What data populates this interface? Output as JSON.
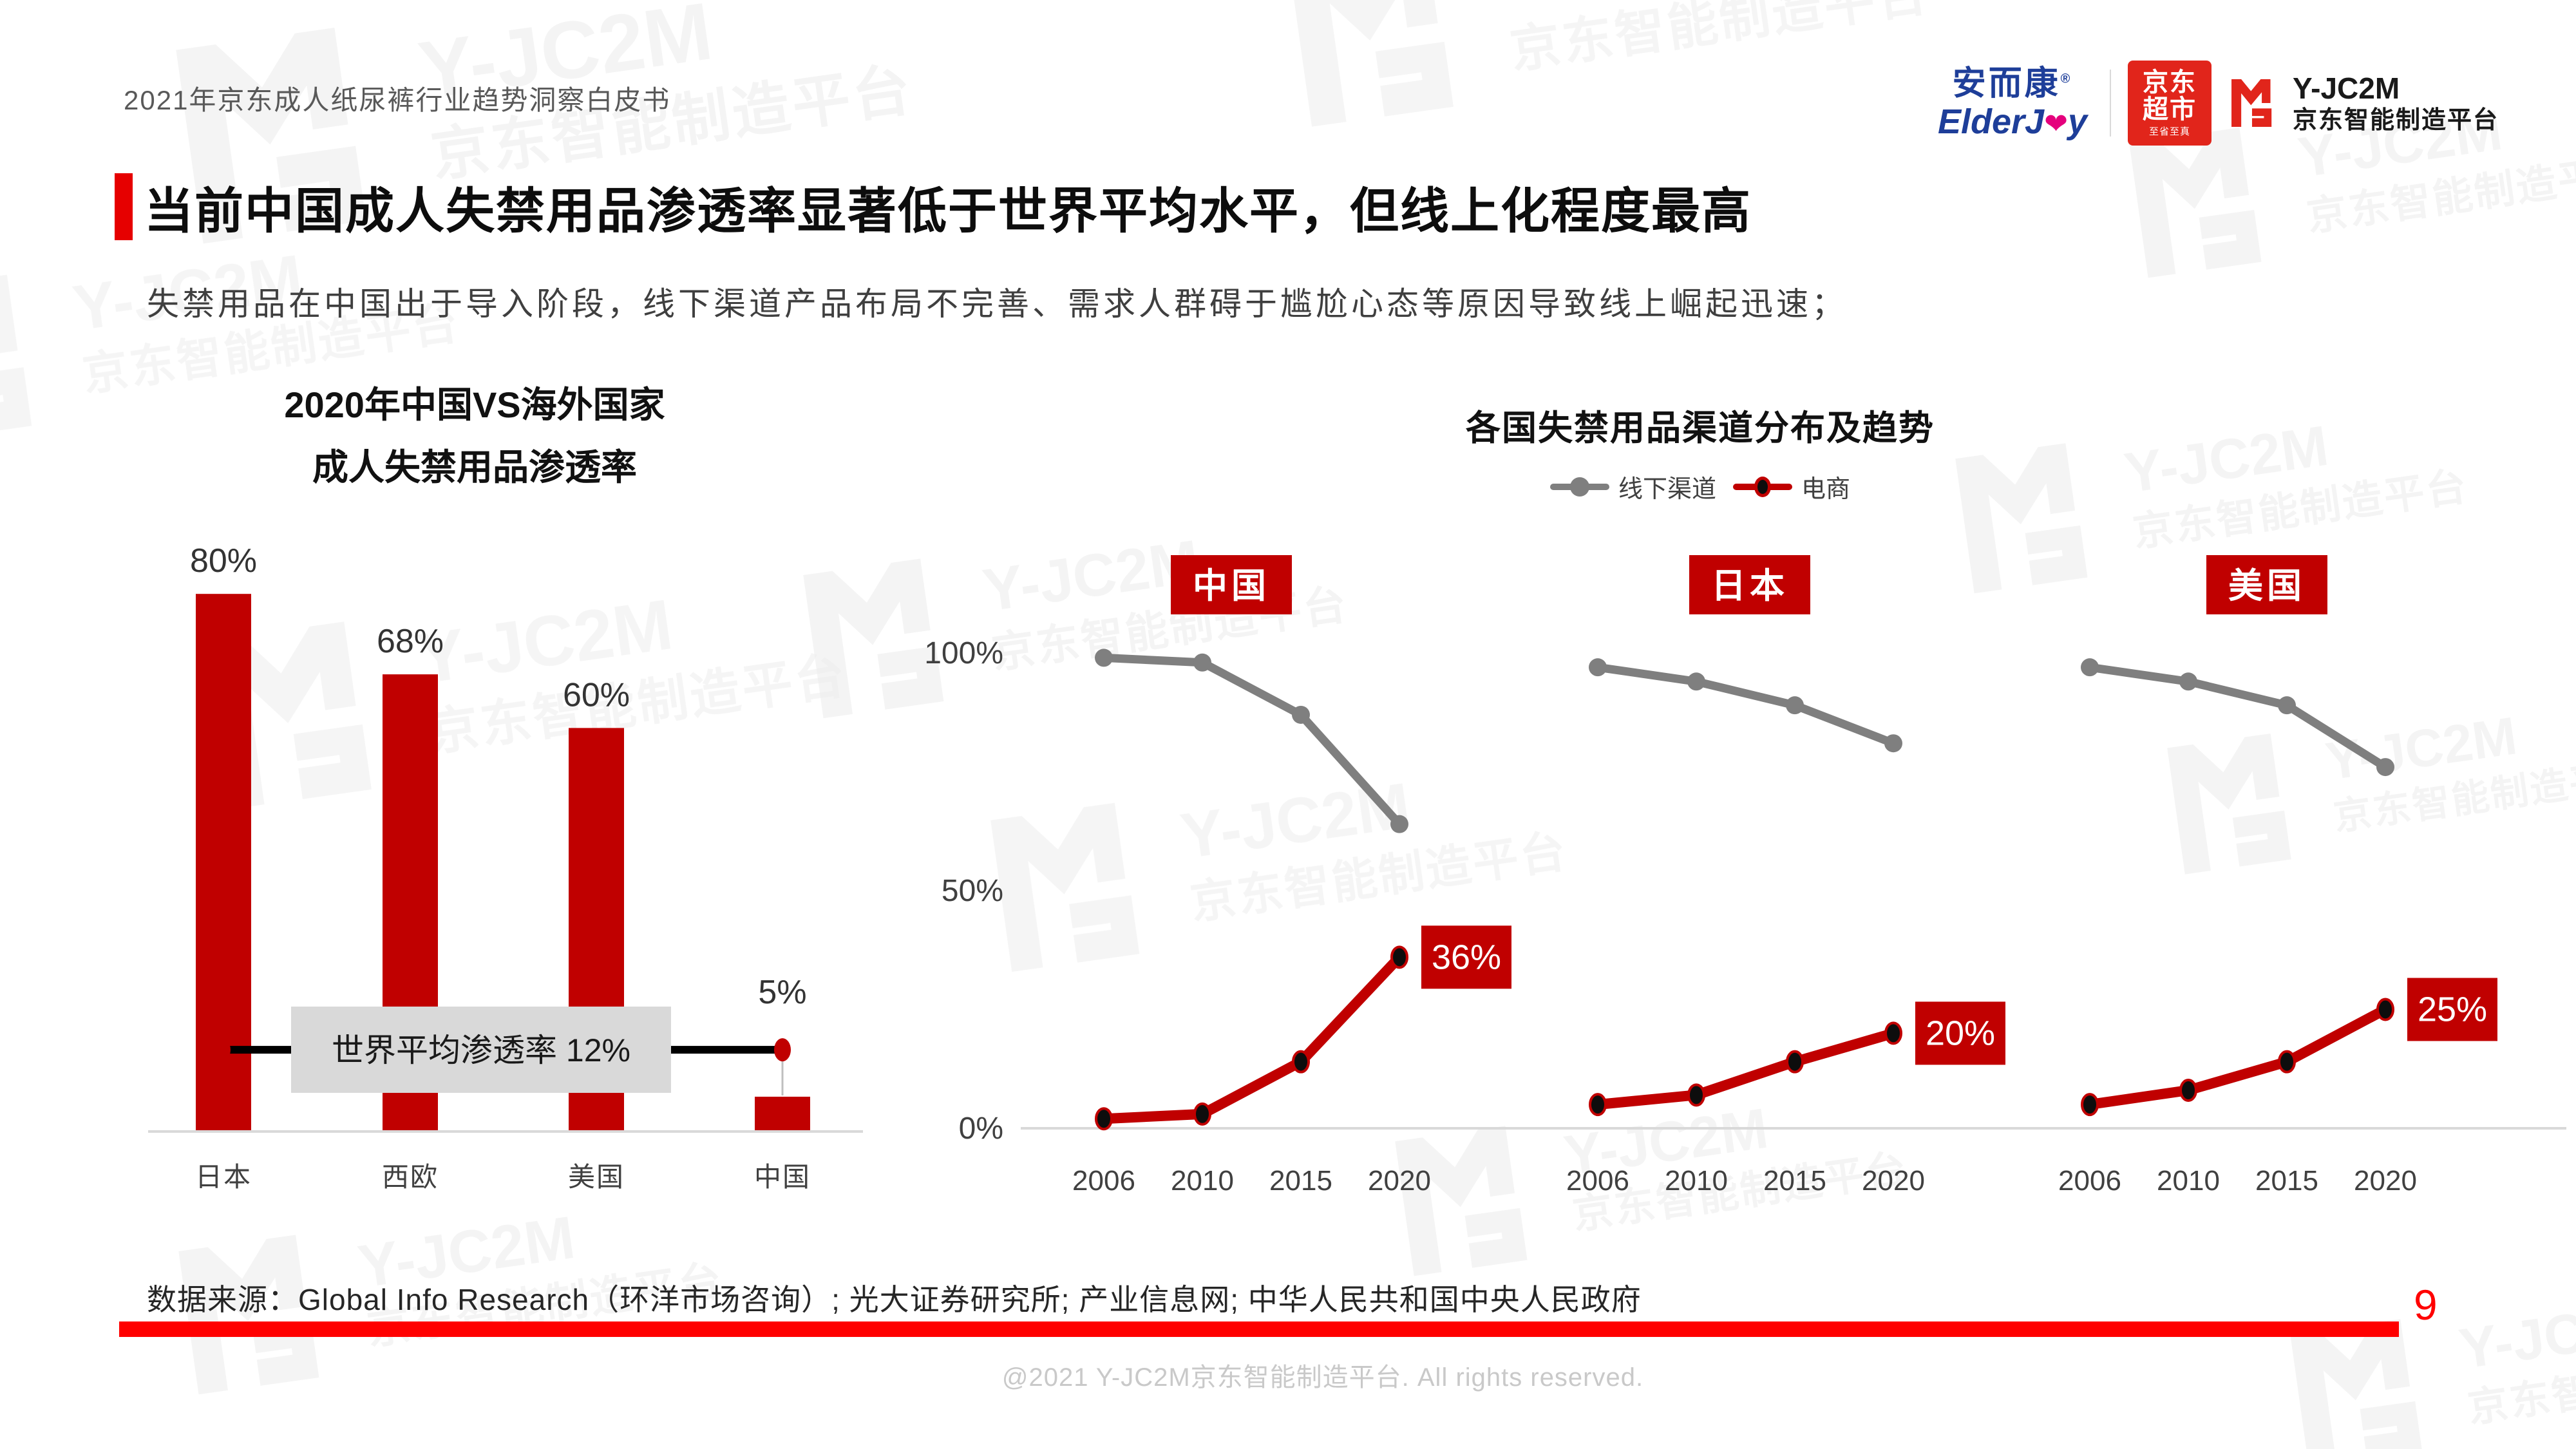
{
  "page": {
    "header_title": "2021年京东成人纸尿裤行业趋势洞察白皮书",
    "title": "当前中国成人失禁用品渗透率显著低于世界平均水平，但线上化程度最高",
    "subtitle": "失禁用品在中国出于导入阶段，线下渠道产品布局不完善、需求人群碍于尴尬心态等原因导致线上崛起迅速；",
    "source": "数据来源：Global Info Research（环洋市场咨询）; 光大证券研究所; 产业信息网; 中华人民共和国中央人民政府",
    "footer": "@2021 Y-JC2M京东智能制造平台. All rights reserved.",
    "page_number": "9"
  },
  "logos": {
    "elderjoy_cn": "安而康",
    "elderjoy_reg": "®",
    "elderjoy_en_1": "ElderJ",
    "elderjoy_en_2": "y",
    "jd_market_line1": "京东",
    "jd_market_line2": "超市",
    "jd_market_tagline": "至省至真",
    "yjc2m_name": "Y-JC2M",
    "yjc2m_subtitle": "京东智能制造平台"
  },
  "watermark": {
    "line1": "Y-JC2M",
    "line2": "京东智能制造平台"
  },
  "colors": {
    "brand_red": "#C00000",
    "jd_red": "#E1251B",
    "accent_red": "#E60000",
    "rule_red": "#FF0000",
    "offline_gray": "#7F7F7F",
    "axis_gray": "#D9D9D9",
    "annotation_box_gray": "#D9D9D9",
    "text_dark": "#262626",
    "text_gray": "#404040",
    "watermark_gray": "#ECECEC"
  },
  "chart_data": [
    {
      "type": "bar",
      "title_lines": [
        "2020年中国VS海外国家",
        "成人失禁用品渗透率"
      ],
      "categories": [
        "日本",
        "西欧",
        "美国",
        "中国"
      ],
      "values": [
        80,
        68,
        60,
        5
      ],
      "value_labels": [
        "80%",
        "68%",
        "60%",
        "5%"
      ],
      "unit": "%",
      "ylim": [
        0,
        85
      ],
      "grid": false,
      "annotation": {
        "label": "世界平均渗透率 12%",
        "value": 12
      }
    },
    {
      "type": "line",
      "title": "各国失禁用品渠道分布及趋势",
      "legend": [
        {
          "name": "线下渠道",
          "color": "#7F7F7F"
        },
        {
          "name": "电商",
          "color": "#C00000"
        }
      ],
      "legend_position": "top",
      "x": [
        "2006",
        "2010",
        "2015",
        "2020"
      ],
      "yticks": [
        {
          "value": 100,
          "label": "100%"
        },
        {
          "value": 50,
          "label": "50%"
        },
        {
          "value": 0,
          "label": "0%"
        }
      ],
      "ylim": [
        0,
        100
      ],
      "grid": false,
      "groups": [
        {
          "label": "中国",
          "series": [
            {
              "name": "线下渠道",
              "values": [
                99,
                98,
                87,
                64
              ]
            },
            {
              "name": "电商",
              "values": [
                2,
                3,
                14,
                36
              ]
            }
          ],
          "end_label": "36%"
        },
        {
          "label": "日本",
          "series": [
            {
              "name": "线下渠道",
              "values": [
                97,
                94,
                89,
                81
              ]
            },
            {
              "name": "电商",
              "values": [
                5,
                7,
                14,
                20
              ]
            }
          ],
          "end_label": "20%"
        },
        {
          "label": "美国",
          "series": [
            {
              "name": "线下渠道",
              "values": [
                97,
                94,
                89,
                76
              ]
            },
            {
              "name": "电商",
              "values": [
                5,
                8,
                14,
                25
              ]
            }
          ],
          "end_label": "25%"
        }
      ]
    }
  ]
}
